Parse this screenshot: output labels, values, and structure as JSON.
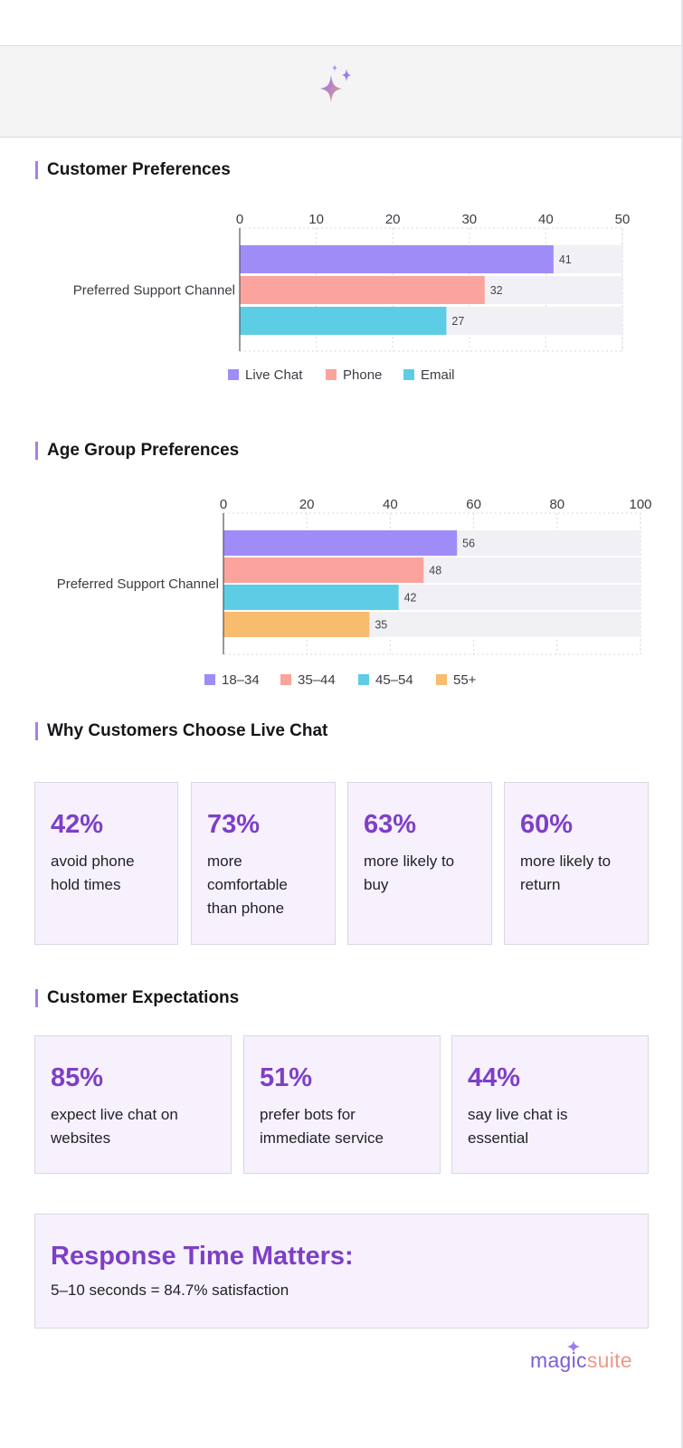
{
  "brand": {
    "logo_magic": "magic",
    "logo_suite": "suite"
  },
  "colors": {
    "purple": "#9f8cf7",
    "salmon": "#fba39d",
    "cyan": "#5ccde4",
    "orange": "#f8bc6f",
    "accent": "#7e3fc7"
  },
  "sections": {
    "customer_preferences": "Customer Preferences",
    "age_group_preferences": "Age Group Preferences",
    "why_live_chat": "Why Customers Choose Live Chat",
    "customer_expectations": "Customer Expectations"
  },
  "chart_data": [
    {
      "type": "bar",
      "orientation": "horizontal",
      "title": "Customer Preferences",
      "categories": [
        "Preferred Support Channel"
      ],
      "series": [
        {
          "name": "Live Chat",
          "values": [
            41
          ],
          "color": "#9f8cf7"
        },
        {
          "name": "Phone",
          "values": [
            32
          ],
          "color": "#fba39d"
        },
        {
          "name": "Email",
          "values": [
            27
          ],
          "color": "#5ccde4"
        }
      ],
      "xlim": [
        0,
        50
      ],
      "ticks": [
        0,
        10,
        20,
        30,
        40,
        50
      ],
      "grid": true,
      "legend": "bottom"
    },
    {
      "type": "bar",
      "orientation": "horizontal",
      "title": "Age Group Preferences",
      "categories": [
        "Preferred Support Channel"
      ],
      "series": [
        {
          "name": "18–34",
          "values": [
            56
          ],
          "color": "#9f8cf7"
        },
        {
          "name": "35–44",
          "values": [
            48
          ],
          "color": "#fba39d"
        },
        {
          "name": "45–54",
          "values": [
            42
          ],
          "color": "#5ccde4"
        },
        {
          "name": "55+",
          "values": [
            35
          ],
          "color": "#f8bc6f"
        }
      ],
      "xlim": [
        0,
        100
      ],
      "ticks": [
        0,
        20,
        40,
        60,
        80,
        100
      ],
      "grid": true,
      "legend": "bottom"
    }
  ],
  "why_cards": [
    {
      "pct": "42%",
      "desc": "avoid phone hold times"
    },
    {
      "pct": "73%",
      "desc": "more comfortable than phone"
    },
    {
      "pct": "63%",
      "desc": "more likely to buy"
    },
    {
      "pct": "60%",
      "desc": "more likely to return"
    }
  ],
  "expect_cards": [
    {
      "pct": "85%",
      "desc": "expect live chat on websites"
    },
    {
      "pct": "51%",
      "desc": "prefer bots for immediate service"
    },
    {
      "pct": "44%",
      "desc": "say live chat is essential"
    }
  ],
  "response": {
    "title": "Response Time Matters:",
    "detail": "5–10 seconds = 84.7% satisfaction"
  }
}
